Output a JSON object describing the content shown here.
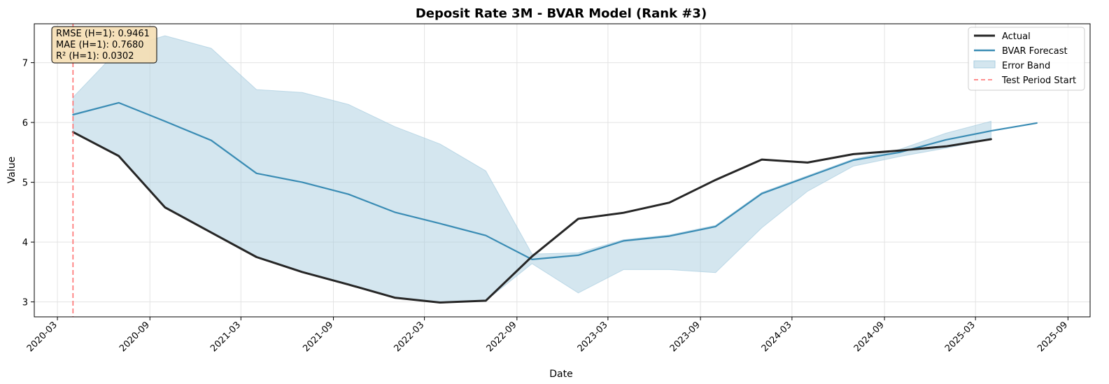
{
  "chart_data": {
    "type": "line",
    "title": "Deposit Rate 3M - BVAR Model (Rank #3)",
    "xlabel": "Date",
    "ylabel": "Value",
    "x_ticks": [
      "2020-03",
      "2020-09",
      "2021-03",
      "2021-09",
      "2022-03",
      "2022-09",
      "2023-03",
      "2023-09",
      "2024-03",
      "2024-09",
      "2025-03",
      "2025-09"
    ],
    "y_ticks": [
      3,
      4,
      5,
      6,
      7
    ],
    "xlim": [
      "2020-01-15",
      "2025-10-15"
    ],
    "ylim": [
      2.75,
      7.65
    ],
    "grid": true,
    "legend_position": "top-right",
    "series": [
      {
        "name": "Actual",
        "color": "#262626",
        "dates": [
          "2020-04-01",
          "2020-07-01",
          "2020-10-01",
          "2021-01-01",
          "2021-04-01",
          "2021-07-01",
          "2021-10-01",
          "2022-01-01",
          "2022-04-01",
          "2022-07-01",
          "2022-10-01",
          "2023-01-01",
          "2023-04-01",
          "2023-07-01",
          "2023-10-01",
          "2024-01-01",
          "2024-04-01",
          "2024-07-01",
          "2024-10-01",
          "2025-01-01",
          "2025-04-01"
        ],
        "values": [
          5.84,
          5.44,
          4.58,
          4.16,
          3.75,
          3.5,
          3.29,
          3.07,
          2.99,
          3.02,
          3.76,
          4.39,
          4.49,
          4.66,
          5.04,
          5.38,
          5.33,
          5.47,
          5.53,
          5.6,
          5.72
        ]
      },
      {
        "name": "BVAR Forecast",
        "color": "#3a8cb4",
        "dates": [
          "2020-04-01",
          "2020-07-01",
          "2020-10-01",
          "2021-01-01",
          "2021-04-01",
          "2021-07-01",
          "2021-10-01",
          "2022-01-01",
          "2022-04-01",
          "2022-07-01",
          "2022-10-01",
          "2023-01-01",
          "2023-04-01",
          "2023-07-01",
          "2023-10-01",
          "2024-01-01",
          "2024-04-01",
          "2024-07-01",
          "2024-10-01",
          "2025-01-01",
          "2025-04-01",
          "2025-07-01"
        ],
        "values": [
          6.13,
          6.33,
          6.02,
          5.7,
          5.15,
          5.0,
          4.8,
          4.5,
          4.31,
          4.11,
          3.71,
          3.78,
          4.02,
          4.1,
          4.26,
          4.81,
          5.09,
          5.37,
          5.5,
          5.71,
          5.86,
          5.99
        ]
      }
    ],
    "error_band": {
      "name": "Error Band",
      "color": "#a9cde0",
      "dates": [
        "2020-04-01",
        "2020-07-01",
        "2020-10-01",
        "2021-01-01",
        "2021-04-01",
        "2021-07-01",
        "2021-10-01",
        "2022-01-01",
        "2022-04-01",
        "2022-07-01",
        "2022-10-01",
        "2023-01-01",
        "2023-04-01",
        "2023-07-01",
        "2023-10-01",
        "2024-01-01",
        "2024-04-01",
        "2024-07-01",
        "2024-10-01",
        "2025-01-01",
        "2025-04-01"
      ],
      "upper": [
        6.42,
        7.22,
        7.45,
        7.24,
        6.55,
        6.5,
        6.3,
        5.93,
        5.64,
        5.19,
        3.8,
        3.82,
        4.04,
        4.12,
        4.28,
        4.83,
        5.11,
        5.39,
        5.55,
        5.82,
        6.02
      ],
      "lower": [
        5.84,
        5.44,
        4.58,
        4.16,
        3.75,
        3.5,
        3.29,
        3.07,
        2.99,
        3.02,
        3.64,
        3.15,
        3.54,
        3.54,
        3.49,
        4.24,
        4.85,
        5.27,
        5.43,
        5.57,
        5.72
      ]
    },
    "test_period_start": {
      "name": "Test Period Start",
      "date": "2020-04-01",
      "color": "#ff6f6f"
    },
    "annotation": [
      "RMSE (H=1): 0.9461",
      "MAE (H=1): 0.7680",
      "R² (H=1): 0.0302"
    ]
  }
}
